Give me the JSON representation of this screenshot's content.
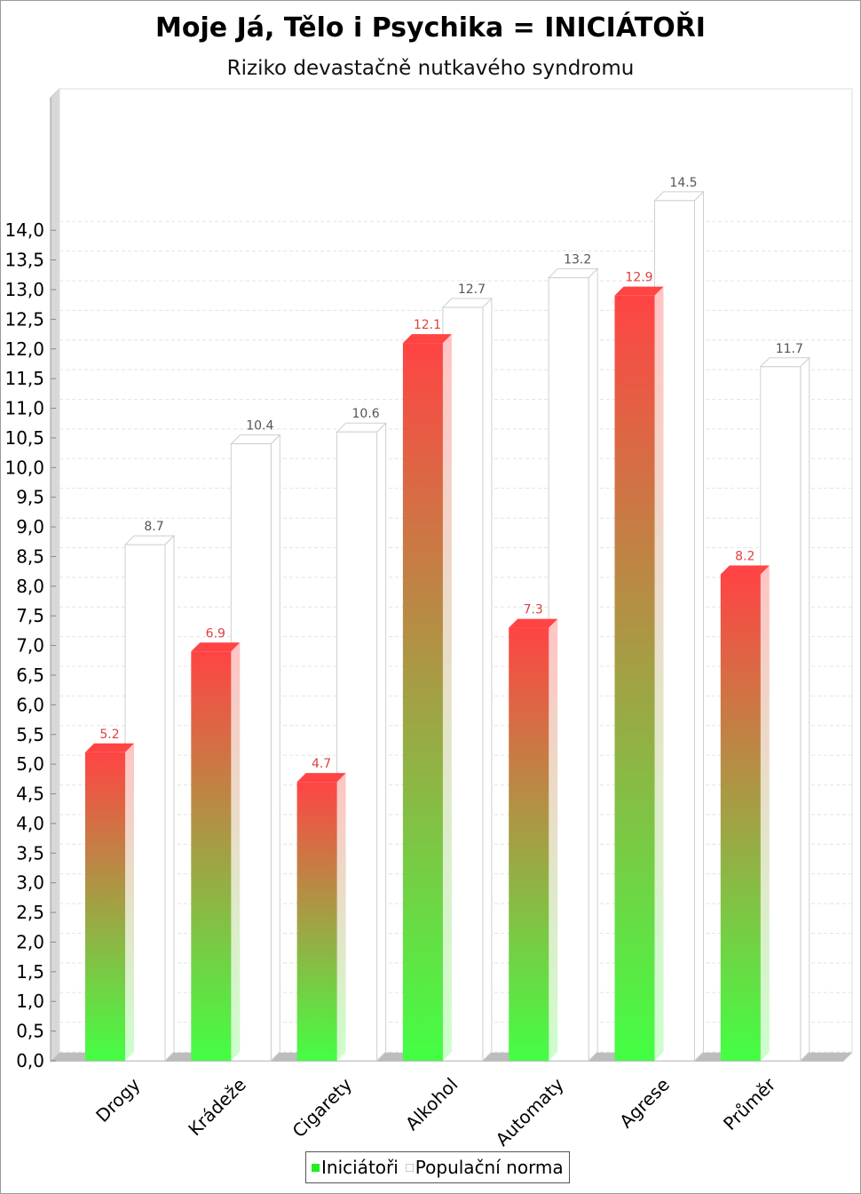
{
  "title": "Moje Já, Tělo i Psychika = INICIÁTOŘI",
  "subtitle": "Riziko devastačně nutkavého syndromu",
  "chart_data": {
    "type": "bar",
    "title": "Moje Já, Tělo i Psychika = INICIÁTOŘI",
    "subtitle": "Riziko devastačně nutkavého syndromu",
    "categories": [
      "Drogy",
      "Krádeže",
      "Cigarety",
      "Alkohol",
      "Automaty",
      "Agrese",
      "Průměr"
    ],
    "series": [
      {
        "name": "Iniciátoři",
        "values": [
          5.2,
          6.9,
          4.7,
          12.1,
          7.3,
          12.9,
          8.2
        ],
        "labels": [
          "5.2",
          "6.9",
          "4.7",
          "12.1",
          "7.3",
          "12.9",
          "8.2"
        ]
      },
      {
        "name": "Populační norma",
        "values": [
          8.7,
          10.4,
          10.6,
          12.7,
          13.2,
          14.5,
          11.7
        ],
        "labels": [
          "8.7",
          "10.4",
          "10.6",
          "12.7",
          "13.2",
          "14.5",
          "11.7"
        ]
      }
    ],
    "ylim": [
      0,
      14
    ],
    "yticks": [
      "0,0",
      "0,5",
      "1,0",
      "1,5",
      "2,0",
      "2,5",
      "3,0",
      "3,5",
      "4,0",
      "4,5",
      "5,0",
      "5,5",
      "6,0",
      "6,5",
      "7,0",
      "7,5",
      "8,0",
      "8,5",
      "9,0",
      "9,5",
      "10,0",
      "10,5",
      "11,0",
      "11,5",
      "12,0",
      "12,5",
      "13,0",
      "13,5",
      "14,0"
    ],
    "ytick_values": [
      0,
      0.5,
      1,
      1.5,
      2,
      2.5,
      3,
      3.5,
      4,
      4.5,
      5,
      5.5,
      6,
      6.5,
      7,
      7.5,
      8,
      8.5,
      9,
      9.5,
      10,
      10.5,
      11,
      11.5,
      12,
      12.5,
      13,
      13.5,
      14
    ],
    "grid": true,
    "legend": "bottom",
    "colors": {
      "series1_top": "#ff4444",
      "series1_bottom": "#44ff44",
      "series2": "#ffffff",
      "label1": "#e04040",
      "label2": "#555555"
    }
  }
}
